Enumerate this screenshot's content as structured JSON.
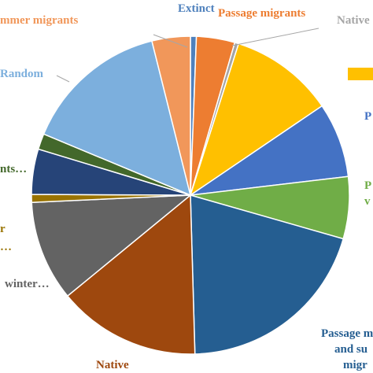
{
  "chart_data": {
    "type": "pie",
    "start_angle_deg": 0,
    "direction": "clockwise",
    "slices": [
      {
        "label": "Extinct",
        "value": 0.6,
        "color": "#4f81bd",
        "label_color": "#4f81bd"
      },
      {
        "label": "Passage migrants",
        "value": 3.9,
        "color": "#ed7d31",
        "label_color": "#ed7d31"
      },
      {
        "label": "Native",
        "value": 0.4,
        "color": "#a5a5a5",
        "label_color": "#a5a5a5"
      },
      {
        "label": "",
        "value": 10.6,
        "color": "#ffc000",
        "label_color": "#ffc000"
      },
      {
        "label": "P",
        "value": 7.6,
        "color": "#4472c4",
        "label_color": "#4472c4"
      },
      {
        "label": "P v",
        "value": 6.3,
        "color": "#70ad47",
        "label_color": "#70ad47"
      },
      {
        "label": "Passage migrants and summer migrants",
        "value": 20.1,
        "color": "#255e91",
        "label_color": "#255e91"
      },
      {
        "label": "Native",
        "value": 14.5,
        "color": "#9e480e",
        "label_color": "#9e480e"
      },
      {
        "label": "winter…",
        "value": 10.2,
        "color": "#636363",
        "label_color": "#636363"
      },
      {
        "label": "r…",
        "value": 0.8,
        "color": "#997300",
        "label_color": "#997300"
      },
      {
        "label": "",
        "value": 4.6,
        "color": "#264478",
        "label_color": "#264478"
      },
      {
        "label": "nts…",
        "value": 1.6,
        "color": "#43682b",
        "label_color": "#43682b"
      },
      {
        "label": "Random",
        "value": 14.8,
        "color": "#7cafdd",
        "label_color": "#7cafdd"
      },
      {
        "label": "mmer migrants",
        "value": 3.9,
        "color": "#f1975a",
        "label_color": "#f1975a"
      }
    ],
    "visible_labels": {
      "extinct": "Extinct",
      "passage": "Passage migrants",
      "native_top": "Native",
      "p1": "P",
      "p2a": "P",
      "p2b": "v",
      "passage_summer_1": "Passage m",
      "passage_summer_2": "and su",
      "passage_summer_3": "migr",
      "native_bottom": "Native",
      "winter": "winter…",
      "left_r": "r",
      "left_dots": "…",
      "left_nts": "nts…",
      "random": "Random",
      "summer": "mmer migrants"
    }
  }
}
